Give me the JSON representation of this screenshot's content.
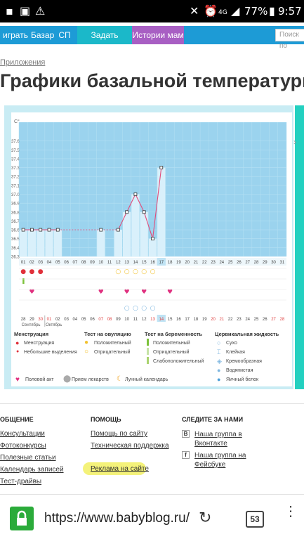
{
  "status": {
    "battery": "77%",
    "time": "9:57",
    "network": "4G"
  },
  "nav": {
    "items": [
      "играть",
      "Базар",
      "СП",
      "Задать вопрос",
      "Истории мам"
    ],
    "search_placeholder": "Поиск по"
  },
  "breadcrumb": "Приложения",
  "page_title": "Графики базальной температуры",
  "chart_data": {
    "type": "line",
    "ylabel": "C°",
    "ylim": [
      36.3,
      37.7
    ],
    "yticks": [
      "37.6",
      "37.5",
      "37.4",
      "37.3",
      "37.2",
      "37.1",
      "37.0",
      "36.9",
      "36.8",
      "36.7",
      "36.6",
      "36.5",
      "36.4",
      "36.3"
    ],
    "cycle_days": [
      "01",
      "02",
      "03",
      "04",
      "05",
      "06",
      "07",
      "08",
      "09",
      "10",
      "11",
      "12",
      "13",
      "14",
      "15",
      "16",
      "17",
      "18",
      "19",
      "20",
      "21",
      "22",
      "23",
      "24",
      "25",
      "26",
      "27",
      "28",
      "29",
      "30",
      "31"
    ],
    "points": [
      [
        1,
        36.6
      ],
      [
        2,
        36.6
      ],
      [
        3,
        36.6
      ],
      [
        4,
        36.6
      ],
      [
        5,
        36.6
      ],
      [
        10,
        36.6
      ],
      [
        12,
        36.6
      ],
      [
        13,
        36.8
      ],
      [
        14,
        37.0
      ],
      [
        15,
        36.8
      ],
      [
        16,
        36.5
      ],
      [
        17,
        37.3
      ]
    ],
    "highlight_day": "17",
    "dates": [
      "28",
      "29",
      "30",
      "01",
      "02",
      "03",
      "04",
      "05",
      "06",
      "07",
      "08",
      "09",
      "10",
      "11",
      "12",
      "13",
      "14",
      "15",
      "16",
      "17",
      "18",
      "19",
      "20",
      "21",
      "22",
      "23",
      "24",
      "25",
      "26",
      "27",
      "28"
    ],
    "red_dates": [
      "30",
      "01",
      "07",
      "08",
      "13",
      "14",
      "20",
      "21",
      "27",
      "28"
    ],
    "highlight_date": "14",
    "months": [
      "Сентябрь",
      "Октябрь"
    ]
  },
  "legend": {
    "menstruation": {
      "title": "Менструация",
      "items": [
        "Менструация",
        "Небольшие выделения"
      ]
    },
    "ovulation": {
      "title": "Тест на овуляцию",
      "items": [
        "Положительный",
        "Отрицательный"
      ]
    },
    "pregnancy": {
      "title": "Тест на беременность",
      "items": [
        "Положительный",
        "Отрицательный",
        "Слабоположительный"
      ]
    },
    "fluid": {
      "title": "Цервикальная жидкость",
      "items": [
        "Сухо",
        "Клейкая",
        "Кремообразная",
        "Водянистая",
        "Яичный белок"
      ]
    },
    "bottom": [
      "Половой акт",
      "Прием лекарств",
      "Лунный календарь"
    ]
  },
  "footer": {
    "col1": {
      "title": "ОБЩЕНИЕ",
      "links": [
        "Консультации",
        "Фотоконкурсы",
        "Полезные статьи",
        "Календарь записей",
        "Тест-драйвы"
      ]
    },
    "col2": {
      "title": "ПОМОЩЬ",
      "links": [
        "Помощь по сайту",
        "Техническая поддержка",
        "Реклама на сайте"
      ]
    },
    "col3": {
      "title": "СЛЕДИТЕ ЗА НАМИ",
      "links": [
        "Наша группа в Вконтакте",
        "Наша группа на Фейсбуке"
      ]
    }
  },
  "browser": {
    "url": "https://www.babyblog.ru/",
    "tabs": "53"
  }
}
